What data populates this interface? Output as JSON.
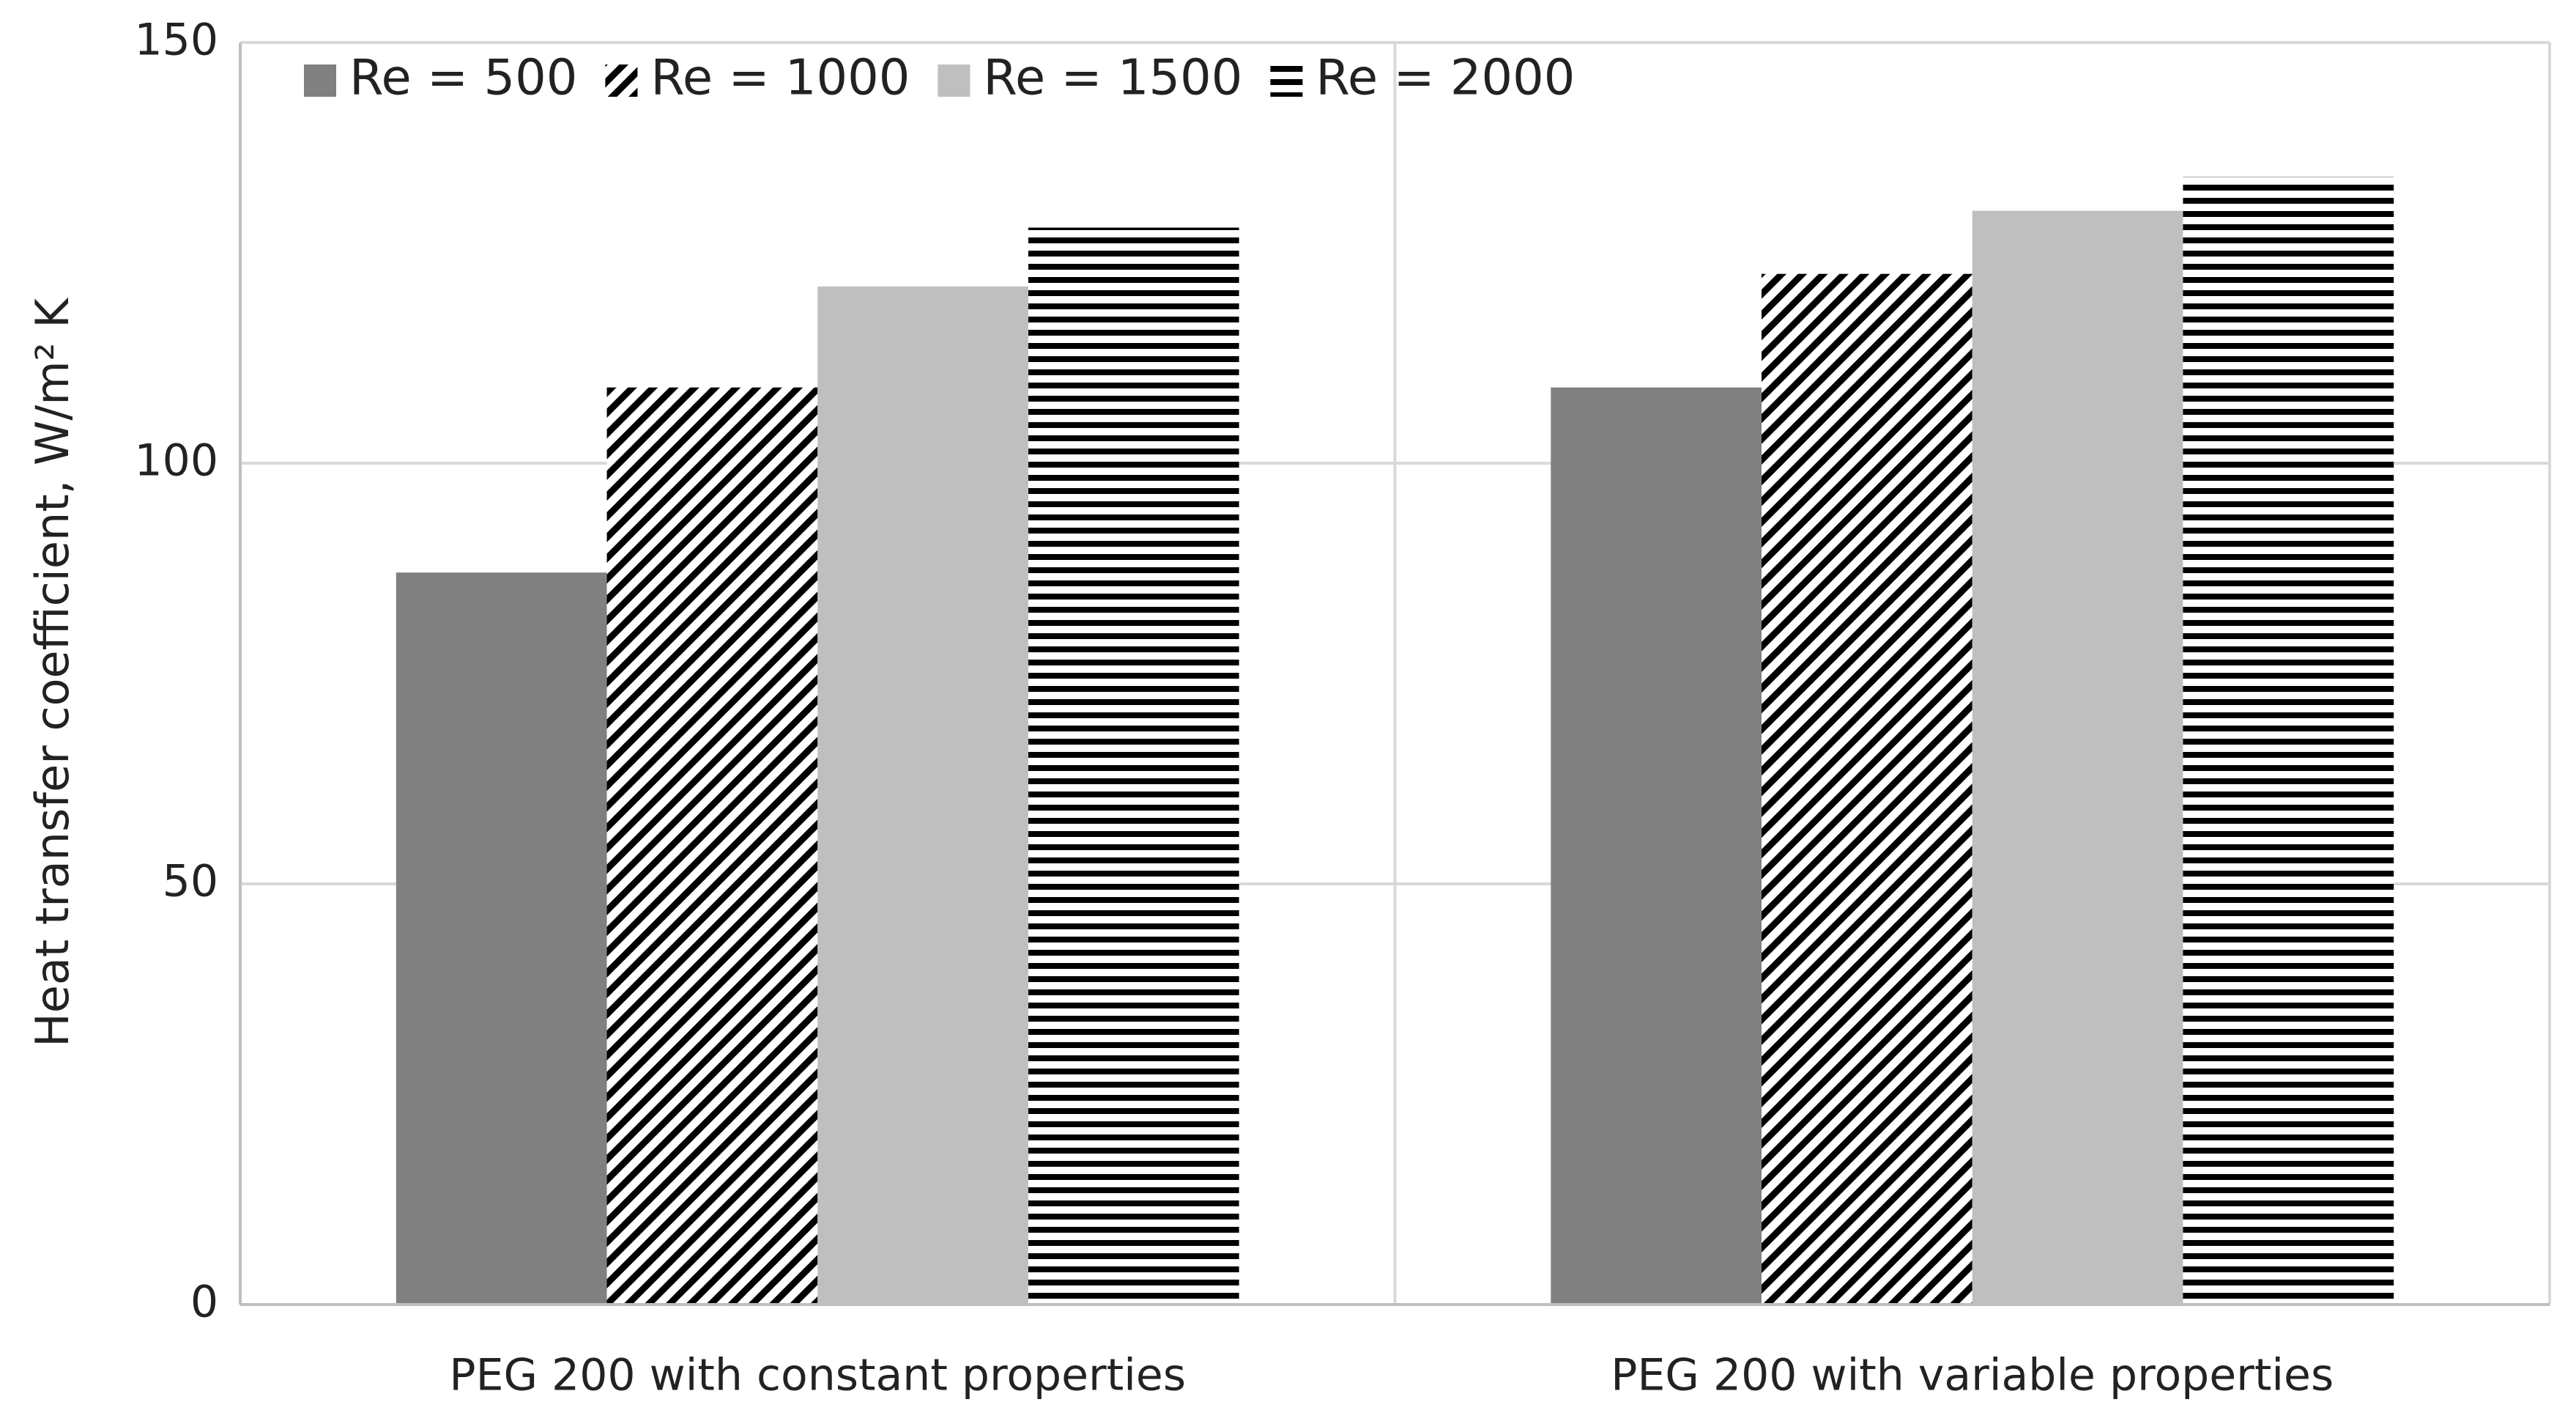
{
  "chart_data": {
    "type": "bar",
    "y_label": "Heat transfer coefficient, W/m² K",
    "categories": [
      "PEG 200 with constant properties",
      "PEG 200 with variable properties"
    ],
    "series": [
      {
        "name": "Re = 500",
        "color": "#808080",
        "pattern": "solid",
        "values": [
          87,
          109
        ]
      },
      {
        "name": "Re = 1000",
        "color": "#000000",
        "pattern": "diagonal",
        "values": [
          109,
          122.5
        ]
      },
      {
        "name": "Re = 1500",
        "color": "#bfbfbf",
        "pattern": "solid",
        "values": [
          121,
          130
        ]
      },
      {
        "name": "Re = 2000",
        "color": "#000000",
        "pattern": "horizontal",
        "values": [
          128,
          134
        ]
      }
    ],
    "ylim": [
      0,
      150
    ],
    "yticks": [
      0,
      50,
      100,
      150
    ],
    "grid": true,
    "legend": "top-left"
  }
}
